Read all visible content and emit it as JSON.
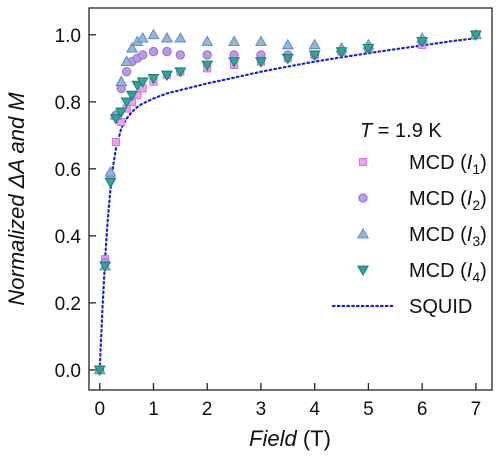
{
  "chart_data": {
    "type": "scatter",
    "xlabel": {
      "italic": "Field",
      "rest": " (T)"
    },
    "ylabel": {
      "before": "Normalized ",
      "delta": "Δ",
      "A": "A",
      "and": " and ",
      "M": "M"
    },
    "xlim": [
      -0.2,
      7.3
    ],
    "ylim": [
      -0.06,
      1.08
    ],
    "x_ticks": [
      "0",
      "1",
      "2",
      "3",
      "4",
      "5",
      "6",
      "7"
    ],
    "y_ticks": [
      "0.0",
      "0.2",
      "0.4",
      "0.6",
      "0.8",
      "1.0"
    ],
    "annotation": {
      "T": "T",
      "value": " = 1.9 K"
    },
    "legend_position": "right",
    "series": [
      {
        "name": "MCD (I1)",
        "label_prefix": "MCD (",
        "label_var": "I",
        "label_sub": "1",
        "label_suffix": ")",
        "marker": "square",
        "color": "#f0a0f2",
        "edge": "#d070d8",
        "points": [
          [
            0,
            0
          ],
          [
            0.1,
            0.33
          ],
          [
            0.2,
            0.58
          ],
          [
            0.3,
            0.68
          ],
          [
            0.4,
            0.74
          ],
          [
            0.5,
            0.78
          ],
          [
            0.6,
            0.8
          ],
          [
            0.7,
            0.82
          ],
          [
            0.8,
            0.84
          ],
          [
            1.0,
            0.86
          ],
          [
            1.25,
            0.88
          ],
          [
            1.5,
            0.89
          ],
          [
            2.0,
            0.9
          ],
          [
            2.5,
            0.91
          ],
          [
            3.0,
            0.92
          ],
          [
            3.5,
            0.93
          ],
          [
            4.0,
            0.94
          ],
          [
            4.5,
            0.95
          ],
          [
            5.0,
            0.96
          ],
          [
            6.0,
            0.97
          ],
          [
            7.0,
            1.0
          ]
        ]
      },
      {
        "name": "MCD (I2)",
        "label_prefix": "MCD (",
        "label_var": "I",
        "label_sub": "2",
        "label_suffix": ")",
        "marker": "circle",
        "color": "#b99ae8",
        "edge": "#8f6ac8",
        "points": [
          [
            0,
            0
          ],
          [
            0.1,
            0.32
          ],
          [
            0.2,
            0.57
          ],
          [
            0.3,
            0.76
          ],
          [
            0.4,
            0.84
          ],
          [
            0.5,
            0.89
          ],
          [
            0.6,
            0.92
          ],
          [
            0.7,
            0.93
          ],
          [
            0.8,
            0.94
          ],
          [
            1.0,
            0.95
          ],
          [
            1.25,
            0.95
          ],
          [
            1.5,
            0.94
          ],
          [
            2.0,
            0.94
          ],
          [
            2.5,
            0.94
          ],
          [
            3.0,
            0.94
          ],
          [
            3.5,
            0.94
          ],
          [
            4.0,
            0.94
          ],
          [
            4.5,
            0.95
          ],
          [
            5.0,
            0.96
          ],
          [
            6.0,
            0.98
          ],
          [
            7.0,
            1.0
          ]
        ]
      },
      {
        "name": "MCD (I3)",
        "label_prefix": "MCD (",
        "label_var": "I",
        "label_sub": "3",
        "label_suffix": ")",
        "marker": "triangle-up",
        "color": "#8fb8e0",
        "edge": "#5a86b8",
        "points": [
          [
            0,
            0
          ],
          [
            0.1,
            0.31
          ],
          [
            0.2,
            0.59
          ],
          [
            0.3,
            0.76
          ],
          [
            0.4,
            0.86
          ],
          [
            0.5,
            0.92
          ],
          [
            0.6,
            0.96
          ],
          [
            0.7,
            0.98
          ],
          [
            0.8,
            0.99
          ],
          [
            1.0,
            1.0
          ],
          [
            1.25,
            0.99
          ],
          [
            1.5,
            0.99
          ],
          [
            2.0,
            0.98
          ],
          [
            2.5,
            0.98
          ],
          [
            3.0,
            0.98
          ],
          [
            3.5,
            0.97
          ],
          [
            4.0,
            0.97
          ],
          [
            4.5,
            0.96
          ],
          [
            5.0,
            0.97
          ],
          [
            6.0,
            0.99
          ],
          [
            7.0,
            1.0
          ]
        ]
      },
      {
        "name": "MCD (I4)",
        "label_prefix": "MCD (",
        "label_var": "I",
        "label_sub": "4",
        "label_suffix": ")",
        "marker": "triangle-down",
        "color": "#2aa69a",
        "edge": "#1a7a70",
        "points": [
          [
            0,
            0
          ],
          [
            0.1,
            0.31
          ],
          [
            0.2,
            0.56
          ],
          [
            0.3,
            0.75
          ],
          [
            0.4,
            0.77
          ],
          [
            0.5,
            0.8
          ],
          [
            0.6,
            0.82
          ],
          [
            0.7,
            0.85
          ],
          [
            0.8,
            0.86
          ],
          [
            1.0,
            0.87
          ],
          [
            1.25,
            0.88
          ],
          [
            1.5,
            0.89
          ],
          [
            2.0,
            0.91
          ],
          [
            2.5,
            0.92
          ],
          [
            3.0,
            0.92
          ],
          [
            3.5,
            0.93
          ],
          [
            4.0,
            0.94
          ],
          [
            4.5,
            0.95
          ],
          [
            5.0,
            0.96
          ],
          [
            6.0,
            0.98
          ],
          [
            7.0,
            1.0
          ]
        ]
      },
      {
        "name": "SQUID",
        "label_prefix": "SQUID",
        "marker": "dotted-line",
        "color": "#1c22d4",
        "curve": [
          [
            0.0,
            0.0
          ],
          [
            0.05,
            0.18
          ],
          [
            0.1,
            0.33
          ],
          [
            0.15,
            0.45
          ],
          [
            0.2,
            0.54
          ],
          [
            0.25,
            0.61
          ],
          [
            0.3,
            0.66
          ],
          [
            0.4,
            0.72
          ],
          [
            0.5,
            0.75
          ],
          [
            0.6,
            0.77
          ],
          [
            0.7,
            0.785
          ],
          [
            0.8,
            0.795
          ],
          [
            1.0,
            0.81
          ],
          [
            1.25,
            0.825
          ],
          [
            1.5,
            0.835
          ],
          [
            2.0,
            0.855
          ],
          [
            2.5,
            0.872
          ],
          [
            3.0,
            0.89
          ],
          [
            3.5,
            0.905
          ],
          [
            4.0,
            0.92
          ],
          [
            4.5,
            0.933
          ],
          [
            5.0,
            0.945
          ],
          [
            5.5,
            0.957
          ],
          [
            6.0,
            0.968
          ],
          [
            6.5,
            0.98
          ],
          [
            7.0,
            0.99
          ]
        ]
      }
    ]
  }
}
